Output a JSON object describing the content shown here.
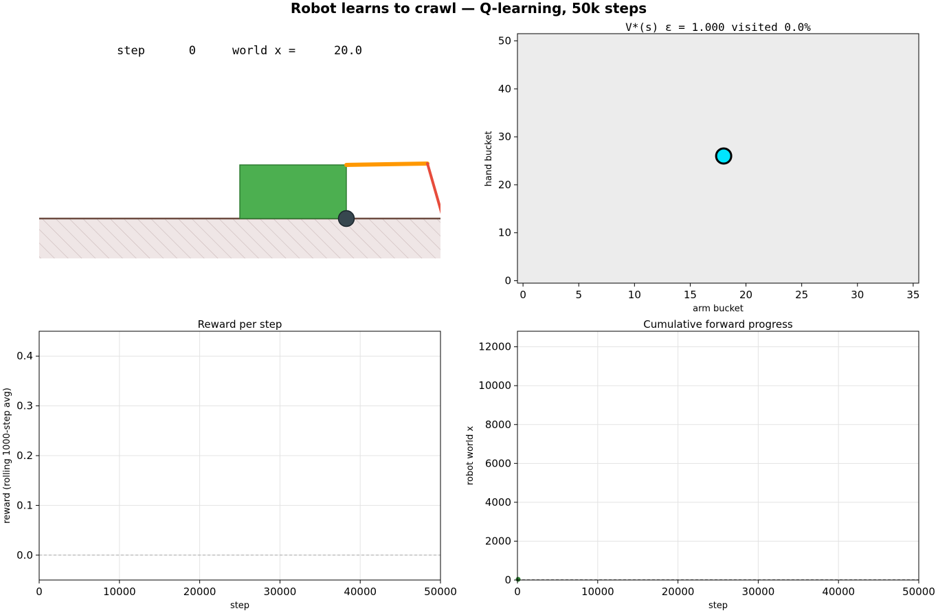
{
  "figure": {
    "title": "Robot learns to crawl — Q-learning, 50k steps"
  },
  "robot_panel": {
    "step_label": "step",
    "step_value": "0",
    "worldx_label": "world x =",
    "worldx_value": "20.0",
    "colors": {
      "body": "#4caf50",
      "arm": "#ff9800",
      "hand": "#e74c3c",
      "wheel": "#37474f",
      "ground_line": "#6d4c41",
      "ground_fill": "#efe6e6"
    }
  },
  "chart_data": [
    {
      "type": "heatmap",
      "title": "V*(s)   ε = 1.000   visited 0.0%",
      "xlabel": "arm bucket",
      "ylabel": "hand bucket",
      "xlim": [
        -0.5,
        35.5
      ],
      "ylim": [
        -0.5,
        51.5
      ],
      "xticks": [
        0,
        5,
        10,
        15,
        20,
        25,
        30,
        35
      ],
      "yticks": [
        0,
        10,
        20,
        30,
        40,
        50
      ],
      "epsilon": 1.0,
      "visited_percent": 0.0,
      "fill_color": "#ececec",
      "current_state": {
        "x": 18,
        "y": 26,
        "color": "#00e5ff"
      },
      "grid": false
    },
    {
      "type": "line",
      "title": "Reward per step",
      "xlabel": "step",
      "ylabel": "reward (rolling 1000-step avg)",
      "xlim": [
        0,
        50000
      ],
      "ylim": [
        -0.05,
        0.45
      ],
      "xticks": [
        0,
        10000,
        20000,
        30000,
        40000,
        50000
      ],
      "yticks": [
        0.0,
        0.1,
        0.2,
        0.3,
        0.4
      ],
      "ytick_labels": [
        "0.0",
        "0.1",
        "0.2",
        "0.3",
        "0.4"
      ],
      "reference_line_y": 0,
      "series": [],
      "grid": true
    },
    {
      "type": "line",
      "title": "Cumulative forward progress",
      "xlabel": "step",
      "ylabel": "robot world x",
      "xlim": [
        0,
        50000
      ],
      "ylim": [
        0,
        12800
      ],
      "xticks": [
        0,
        10000,
        20000,
        30000,
        40000,
        50000
      ],
      "yticks": [
        0,
        2000,
        4000,
        6000,
        8000,
        10000,
        12000
      ],
      "reference_line_y": 0,
      "series": [
        {
          "x": [
            0
          ],
          "y": [
            0
          ],
          "color": "#2e7d32"
        }
      ],
      "grid": true
    }
  ]
}
